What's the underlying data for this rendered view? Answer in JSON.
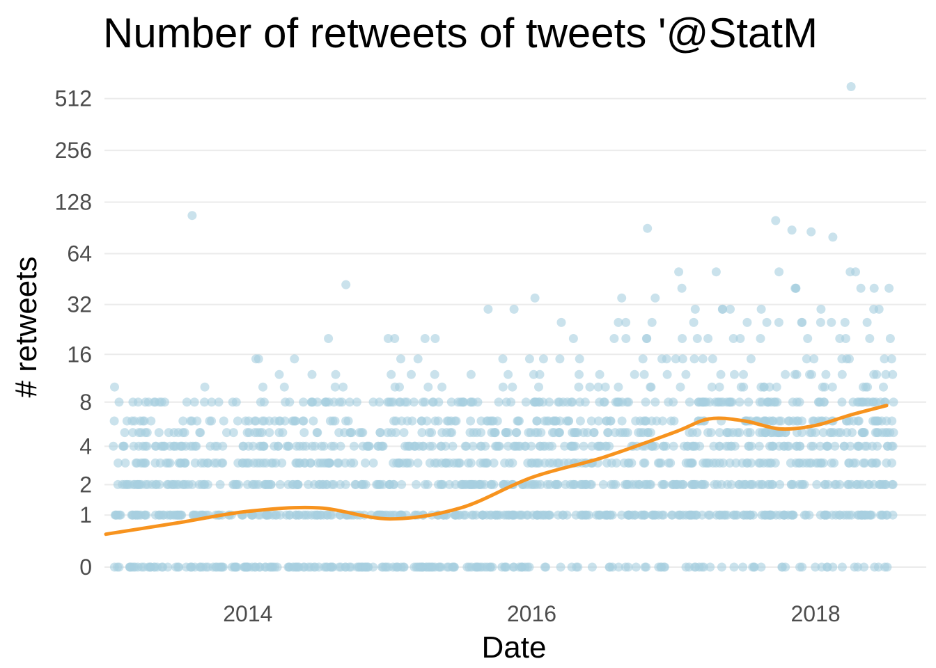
{
  "chart_data": {
    "type": "scatter",
    "title": "Number of retweets of tweets '@StatM",
    "xlabel": "Date",
    "ylabel": "# retweets",
    "x_ticks": [
      "2014",
      "2016",
      "2018"
    ],
    "y_ticks": [
      "0",
      "1",
      "2",
      "4",
      "8",
      "16",
      "32",
      "64",
      "128",
      "256",
      "512"
    ],
    "y_scale": "log2(1 + retweets)",
    "xlim": [
      "2013-01-01",
      "2018-08-01"
    ],
    "ylim": [
      0,
      700
    ],
    "grid": "horizontal major gridlines",
    "colors": {
      "points": "#a6cfdf",
      "trend": "#f7931e",
      "grid": "#ebebeb"
    },
    "outliers": [
      {
        "x": "2013-08-10",
        "y": 107
      },
      {
        "x": "2014-09-10",
        "y": 42
      },
      {
        "x": "2016-10-25",
        "y": 90
      },
      {
        "x": "2017-09-20",
        "y": 100
      },
      {
        "x": "2017-11-01",
        "y": 88
      },
      {
        "x": "2017-12-20",
        "y": 86
      },
      {
        "x": "2018-02-15",
        "y": 80
      },
      {
        "x": "2018-04-01",
        "y": 600
      }
    ],
    "density": [
      {
        "year": "2013",
        "values": [
          0,
          1,
          2,
          3,
          4,
          5,
          6,
          8,
          10
        ]
      },
      {
        "year": "2014",
        "values": [
          0,
          1,
          2,
          3,
          4,
          5,
          6,
          8,
          10,
          12,
          15,
          20
        ]
      },
      {
        "year": "2015",
        "values": [
          0,
          1,
          2,
          3,
          4,
          5,
          6,
          8,
          10,
          12,
          15,
          20,
          30
        ]
      },
      {
        "year": "2016",
        "values": [
          0,
          1,
          2,
          3,
          4,
          5,
          6,
          8,
          10,
          12,
          15,
          20,
          25,
          35
        ]
      },
      {
        "year": "2017",
        "values": [
          0,
          1,
          2,
          3,
          4,
          5,
          6,
          8,
          10,
          12,
          15,
          20,
          25,
          30,
          40,
          50
        ]
      },
      {
        "year": "2018",
        "values": [
          0,
          1,
          2,
          3,
          4,
          5,
          6,
          8,
          10,
          12,
          15,
          20,
          25,
          30,
          40,
          50
        ]
      }
    ],
    "trend": [
      {
        "x": "2013-01-01",
        "y": 0.55
      },
      {
        "x": "2013-07-01",
        "y": 0.8
      },
      {
        "x": "2014-01-01",
        "y": 1.1
      },
      {
        "x": "2014-07-01",
        "y": 1.2
      },
      {
        "x": "2015-01-01",
        "y": 0.9
      },
      {
        "x": "2015-07-01",
        "y": 1.2
      },
      {
        "x": "2016-01-01",
        "y": 2.3
      },
      {
        "x": "2016-07-01",
        "y": 3.3
      },
      {
        "x": "2017-01-01",
        "y": 5.0
      },
      {
        "x": "2017-04-01",
        "y": 6.2
      },
      {
        "x": "2017-07-01",
        "y": 6.0
      },
      {
        "x": "2017-10-01",
        "y": 5.3
      },
      {
        "x": "2018-01-01",
        "y": 5.6
      },
      {
        "x": "2018-04-01",
        "y": 6.6
      },
      {
        "x": "2018-07-01",
        "y": 7.6
      }
    ]
  }
}
